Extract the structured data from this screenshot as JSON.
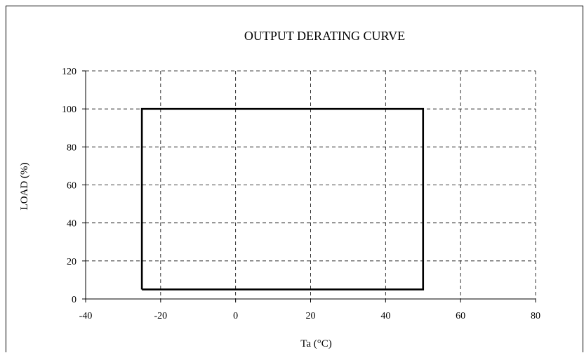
{
  "chart_data": {
    "type": "line",
    "title": "OUTPUT DERATING CURVE",
    "xlabel": "Ta (°C)",
    "ylabel": "LOAD (%)",
    "xlim": [
      -40,
      80
    ],
    "ylim": [
      0,
      120
    ],
    "x_ticks": [
      -40,
      -20,
      0,
      20,
      40,
      60,
      80
    ],
    "y_ticks": [
      0,
      20,
      40,
      60,
      80,
      100,
      120
    ],
    "grid": true,
    "grid_style": "dashed",
    "legend": false,
    "series": [
      {
        "x": [
          -25,
          -25,
          50,
          50,
          -25
        ],
        "y": [
          5,
          100,
          100,
          5,
          5
        ],
        "color": "#000000"
      }
    ]
  }
}
